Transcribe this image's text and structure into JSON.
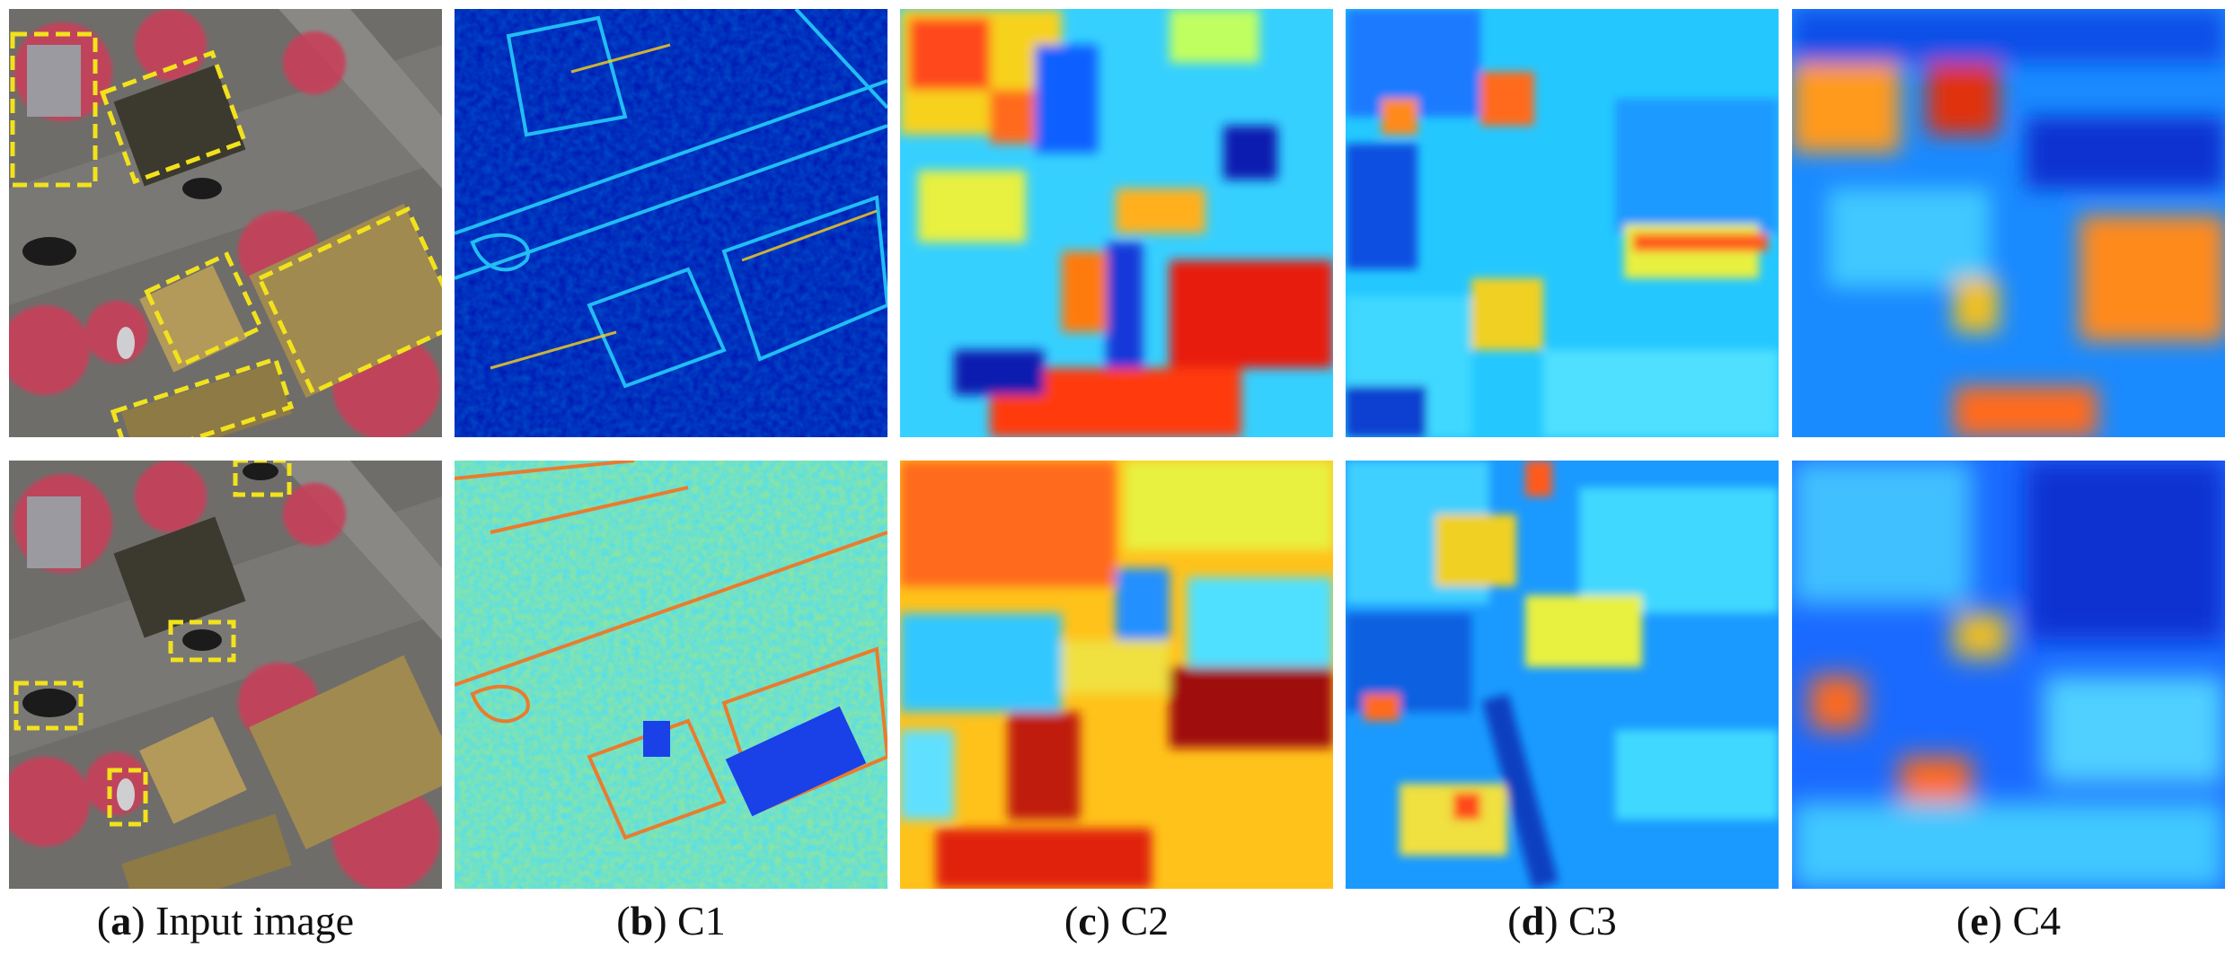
{
  "captions": [
    {
      "letter": "a",
      "text": " Input image"
    },
    {
      "letter": "b",
      "text": " C1"
    },
    {
      "letter": "c",
      "text": " C2"
    },
    {
      "letter": "d",
      "text": " C3"
    },
    {
      "letter": "e",
      "text": " C4"
    }
  ],
  "colors": {
    "highlight_box": "#f2e21c",
    "colormap": [
      "#00008f",
      "#0000ff",
      "#00ffff",
      "#ffff00",
      "#ff0000",
      "#800000"
    ]
  },
  "rows": [
    "top",
    "bottom"
  ]
}
